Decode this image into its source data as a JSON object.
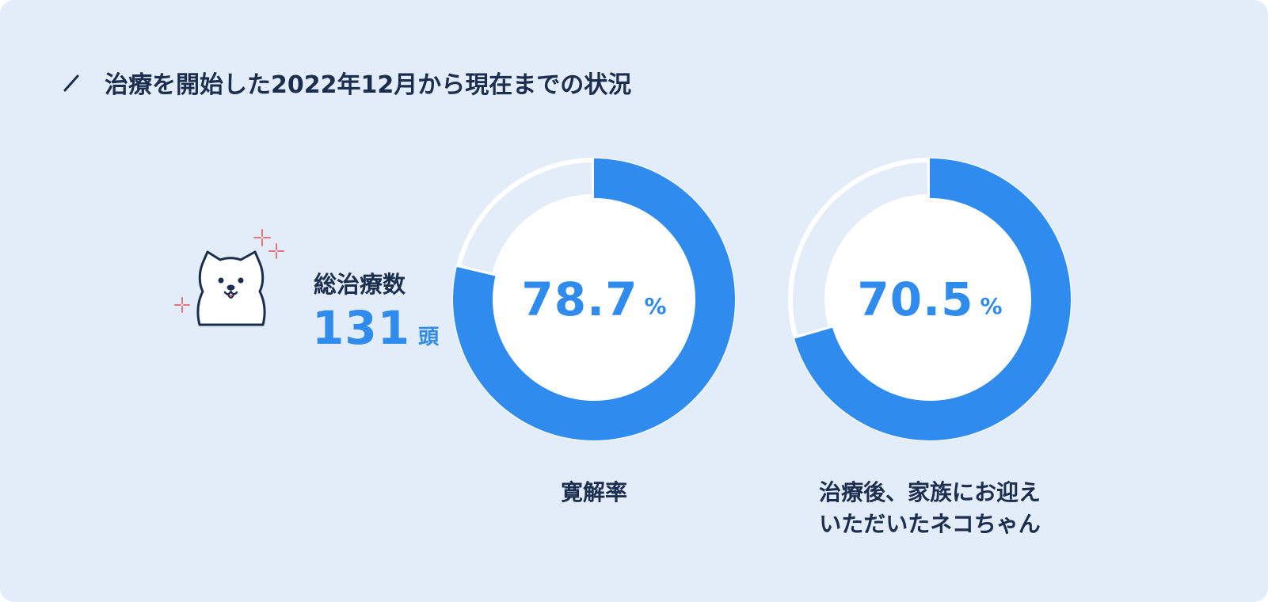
{
  "header": {
    "title": "治療を開始した2022年12月から現在までの状況"
  },
  "total": {
    "label": "総治療数",
    "value": "131",
    "unit": "頭"
  },
  "colors": {
    "accent": "#2f8bed",
    "remainder": "#e3edf9",
    "background": "#e3edf9",
    "text": "#1b2e4f",
    "sparkle": "#e8737b"
  },
  "icons": {
    "title_mark": "slash-icon",
    "mascot": "cat-icon",
    "decoration": "sparkle-icon"
  },
  "chart_data": [
    {
      "type": "pie",
      "donut": true,
      "values": [
        78.7,
        21.3
      ],
      "value_label": "78.7",
      "unit": "%",
      "caption_lines": [
        "寛解率"
      ]
    },
    {
      "type": "pie",
      "donut": true,
      "values": [
        70.5,
        29.5
      ],
      "value_label": "70.5",
      "unit": "%",
      "caption_lines": [
        "治療後、家族にお迎え",
        "いただいたネコちゃん"
      ]
    }
  ]
}
